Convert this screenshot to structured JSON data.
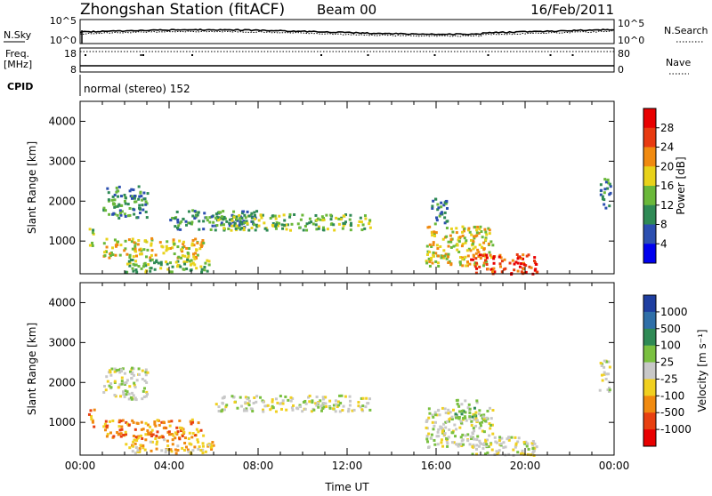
{
  "header": {
    "title": "Zhongshan Station (fitACF)",
    "beam": "Beam 00",
    "date": "16/Feb/2011"
  },
  "top_panels": {
    "nsky_label": "N.Sky",
    "nsearch_label": "N.Search",
    "nsky_ticks": [
      "10^5",
      "10^0"
    ],
    "nsearch_ticks": [
      "10^5",
      "10^0"
    ],
    "freq_label_line1": "Freq.",
    "freq_label_line2": "[MHz]",
    "freq_ticks": [
      "18",
      "8"
    ],
    "nave_label": "Nave",
    "nave_ticks": [
      "80",
      "0"
    ],
    "cpid_label": "CPID",
    "cpid_value": "normal (stereo) 152",
    "freq_dips_hours": [
      0.2,
      2.7,
      2.8,
      5.0,
      10.8,
      12.9,
      15.9,
      18.3,
      21.1,
      22.1
    ]
  },
  "chart_data": [
    {
      "type": "heatmap",
      "name": "power",
      "ylabel": "Slant Range [km]",
      "y_ticks": [
        "4000",
        "3000",
        "2000",
        "1000"
      ],
      "y_tick_values": [
        4000,
        3000,
        2000,
        1000
      ],
      "ylim": [
        180,
        4500
      ],
      "xlim": [
        0,
        24
      ],
      "x_ticks": [
        "00:00",
        "04:00",
        "08:00",
        "12:00",
        "16:00",
        "20:00",
        "00:00"
      ],
      "colorbar_label": "Power [dB]",
      "colorbar_ticks": [
        "28",
        "24",
        "20",
        "16",
        "12",
        "8",
        "4"
      ],
      "colorbar_tick_values": [
        28,
        24,
        20,
        16,
        12,
        8,
        4
      ],
      "colorbar_range": [
        0,
        32
      ],
      "colors": [
        "#0000ee",
        "#2c4fb0",
        "#2f8a55",
        "#6ab83a",
        "#e8d21a",
        "#f08a10",
        "#e83a10",
        "#e80000"
      ],
      "regions": [
        {
          "t0": 0.35,
          "t1": 0.55,
          "r0": 800,
          "r1": 1400,
          "level": 3
        },
        {
          "t0": 1.0,
          "t1": 3.0,
          "r0": 1600,
          "r1": 2400,
          "level": 2
        },
        {
          "t0": 1.0,
          "t1": 5.5,
          "r0": 600,
          "r1": 1100,
          "level": 4
        },
        {
          "t0": 2.0,
          "t1": 6.0,
          "r0": 250,
          "r1": 600,
          "level": 3
        },
        {
          "t0": 4.0,
          "t1": 8.0,
          "r0": 1300,
          "r1": 1800,
          "level": 2
        },
        {
          "t0": 6.0,
          "t1": 13.0,
          "r0": 1300,
          "r1": 1700,
          "level": 3
        },
        {
          "t0": 15.5,
          "t1": 18.5,
          "r0": 400,
          "r1": 1400,
          "level": 4
        },
        {
          "t0": 17.5,
          "t1": 20.5,
          "r0": 200,
          "r1": 700,
          "level": 6
        },
        {
          "t0": 15.7,
          "t1": 16.5,
          "r0": 1400,
          "r1": 2100,
          "level": 2
        },
        {
          "t0": 23.3,
          "t1": 23.8,
          "r0": 1800,
          "r1": 2600,
          "level": 2
        }
      ]
    },
    {
      "type": "heatmap",
      "name": "velocity",
      "ylabel": "Slant Range [km]",
      "y_ticks": [
        "4000",
        "3000",
        "2000",
        "1000"
      ],
      "y_tick_values": [
        4000,
        3000,
        2000,
        1000
      ],
      "ylim": [
        180,
        4500
      ],
      "xlim": [
        0,
        24
      ],
      "xlabel": "Time UT",
      "x_ticks": [
        "00:00",
        "04:00",
        "08:00",
        "12:00",
        "16:00",
        "20:00",
        "00:00"
      ],
      "colorbar_label": "Velocity [m s⁻¹]",
      "colorbar_ticks": [
        "1000",
        "500",
        "100",
        "25",
        "-25",
        "-100",
        "-500",
        "-1000"
      ],
      "colors": [
        "#1e3ea0",
        "#2f6fa8",
        "#2f8a55",
        "#7ac040",
        "#c8c8c8",
        "#f0d020",
        "#f08a10",
        "#e84010",
        "#e80000"
      ],
      "regions": [
        {
          "t0": 0.35,
          "t1": 0.6,
          "r0": 800,
          "r1": 1400,
          "cat": 6
        },
        {
          "t0": 1.0,
          "t1": 3.0,
          "r0": 1600,
          "r1": 2400,
          "cat": 4
        },
        {
          "t0": 1.0,
          "t1": 5.5,
          "r0": 600,
          "r1": 1100,
          "cat": 6
        },
        {
          "t0": 2.0,
          "t1": 6.0,
          "r0": 250,
          "r1": 600,
          "cat": 5
        },
        {
          "t0": 6.0,
          "t1": 13.0,
          "r0": 1300,
          "r1": 1700,
          "cat": 4
        },
        {
          "t0": 15.5,
          "t1": 18.5,
          "r0": 400,
          "r1": 1400,
          "cat": 4
        },
        {
          "t0": 17.5,
          "t1": 20.5,
          "r0": 200,
          "r1": 700,
          "cat": 4
        },
        {
          "t0": 16.8,
          "t1": 17.8,
          "r0": 1000,
          "r1": 1600,
          "cat": 3
        },
        {
          "t0": 23.3,
          "t1": 23.8,
          "r0": 1800,
          "r1": 2600,
          "cat": 4
        }
      ]
    }
  ]
}
